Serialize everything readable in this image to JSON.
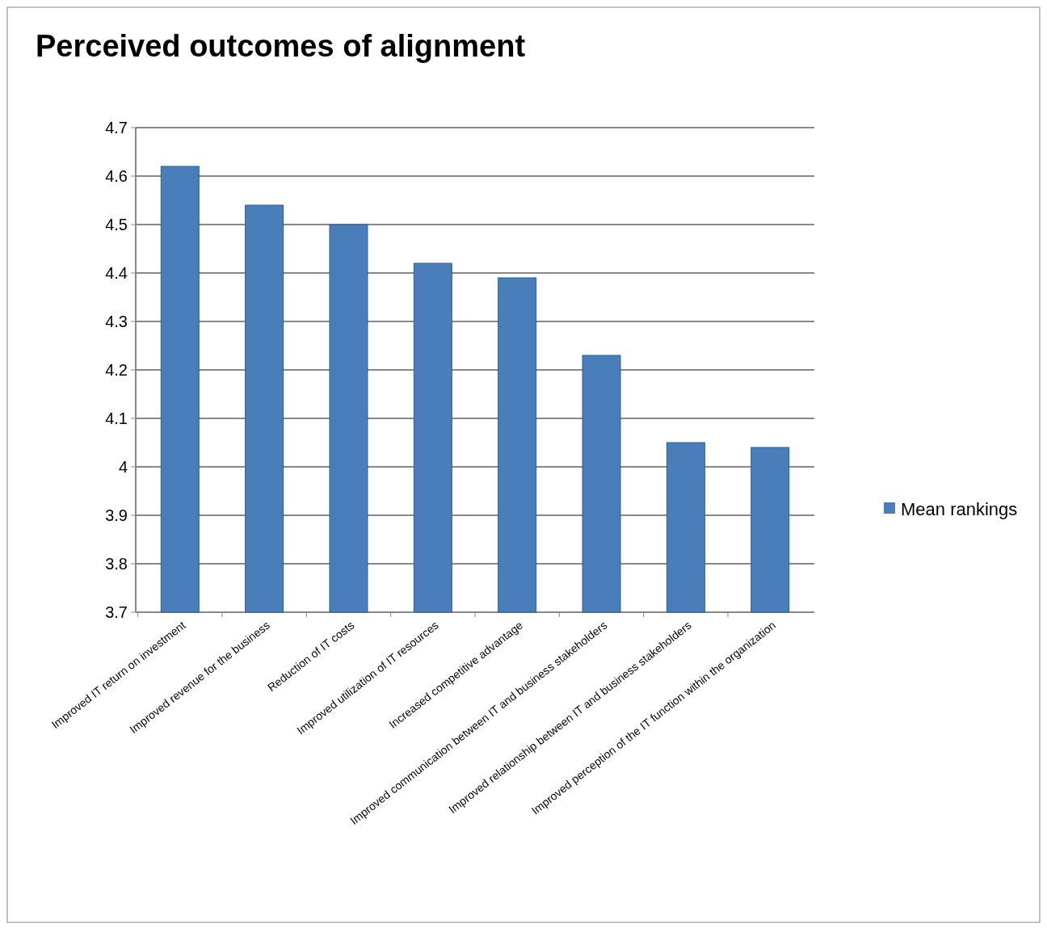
{
  "chart_data": {
    "type": "bar",
    "title": "Perceived outcomes of alignment",
    "categories": [
      "Improved IT return on investment",
      "Improved revenue for the business",
      "Reduction of IT costs",
      "Improved utilization of IT resources",
      "Increased competitive advantage",
      "Improved communication between IT and business stakeholders",
      "Improved relationship between IT and business stakeholders",
      "Improved perception of the IT function within the organization"
    ],
    "series": [
      {
        "name": "Mean rankings",
        "color": "#4a7ebb",
        "values": [
          4.62,
          4.54,
          4.5,
          4.42,
          4.39,
          4.23,
          4.05,
          4.04
        ]
      }
    ],
    "ylim": [
      3.7,
      4.7
    ],
    "yticks": [
      3.7,
      3.8,
      3.9,
      4,
      4.1,
      4.2,
      4.3,
      4.4,
      4.5,
      4.6,
      4.7
    ],
    "grid": "y",
    "legend": "right"
  }
}
